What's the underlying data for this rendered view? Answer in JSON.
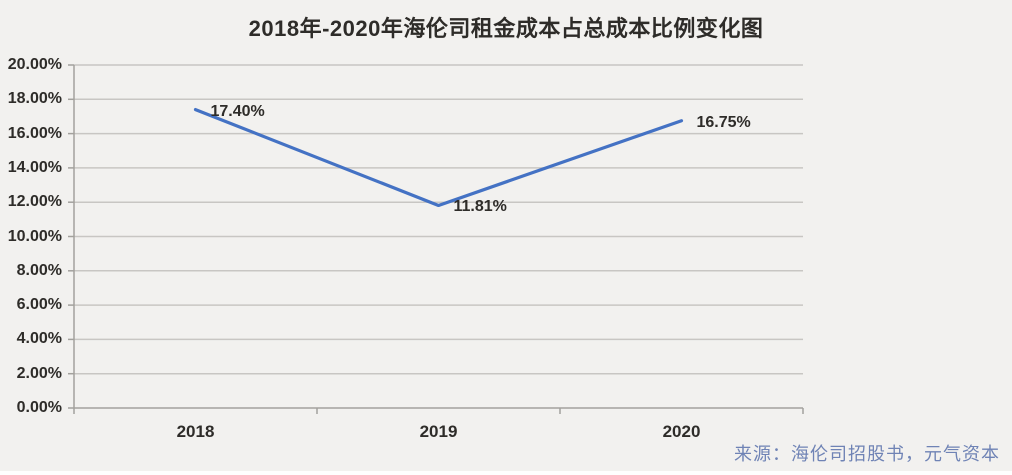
{
  "page": {
    "source_note": "来源：海伦司招股书，元气资本"
  },
  "colors": {
    "background": "#f2f1ef",
    "line": "#4472c4",
    "grid": "#c8c6c3",
    "axis": "#a3a19d",
    "text": "#2e2c29",
    "source": "#6f83b5"
  },
  "chart_data": {
    "type": "line",
    "title": "2018年-2020年海伦司租金成本占总成本比例变化图",
    "categories": [
      "2018",
      "2019",
      "2020"
    ],
    "values": [
      17.4,
      11.81,
      16.75
    ],
    "data_labels": [
      "17.40%",
      "11.81%",
      "16.75%"
    ],
    "xlabel": "",
    "ylabel": "",
    "ylim": [
      0,
      20
    ],
    "ytick_step": 2,
    "ytick_labels": [
      "0.00%",
      "2.00%",
      "4.00%",
      "6.00%",
      "8.00%",
      "10.00%",
      "12.00%",
      "14.00%",
      "16.00%",
      "18.00%",
      "20.00%"
    ],
    "grid": true,
    "legend": "none"
  }
}
